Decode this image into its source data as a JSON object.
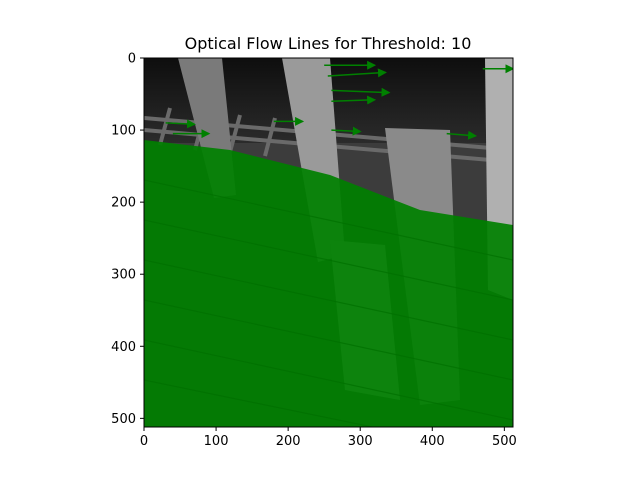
{
  "chart_data": {
    "type": "image-with-vectors",
    "title": "Optical Flow Lines for Threshold: 10",
    "xlabel": "",
    "ylabel": "",
    "xlim": [
      0,
      512
    ],
    "ylim": [
      512,
      0
    ],
    "x_ticks": [
      0,
      100,
      200,
      300,
      400,
      500
    ],
    "y_ticks": [
      0,
      100,
      200,
      300,
      400,
      500
    ],
    "x_tick_labels": [
      "0",
      "100",
      "200",
      "300",
      "400",
      "500"
    ],
    "y_tick_labels": [
      "0",
      "100",
      "200",
      "300",
      "400",
      "500"
    ],
    "grid": false,
    "legend": "none",
    "vector_color": "#008000",
    "background": "grayscale image of wooden posts and a wire grid",
    "visible_flow_vectors": [
      {
        "x0": 250,
        "y0": 10,
        "x1": 320,
        "y1": 10
      },
      {
        "x0": 255,
        "y0": 25,
        "x1": 335,
        "y1": 20
      },
      {
        "x0": 260,
        "y0": 45,
        "x1": 340,
        "y1": 48
      },
      {
        "x0": 260,
        "y0": 60,
        "x1": 320,
        "y1": 58
      },
      {
        "x0": 30,
        "y0": 90,
        "x1": 70,
        "y1": 92
      },
      {
        "x0": 40,
        "y0": 105,
        "x1": 90,
        "y1": 105
      },
      {
        "x0": 180,
        "y0": 88,
        "x1": 220,
        "y1": 88
      },
      {
        "x0": 260,
        "y0": 100,
        "x1": 300,
        "y1": 102
      },
      {
        "x0": 420,
        "y0": 105,
        "x1": 460,
        "y1": 108
      },
      {
        "x0": 470,
        "y0": 15,
        "x1": 512,
        "y1": 15
      }
    ]
  }
}
